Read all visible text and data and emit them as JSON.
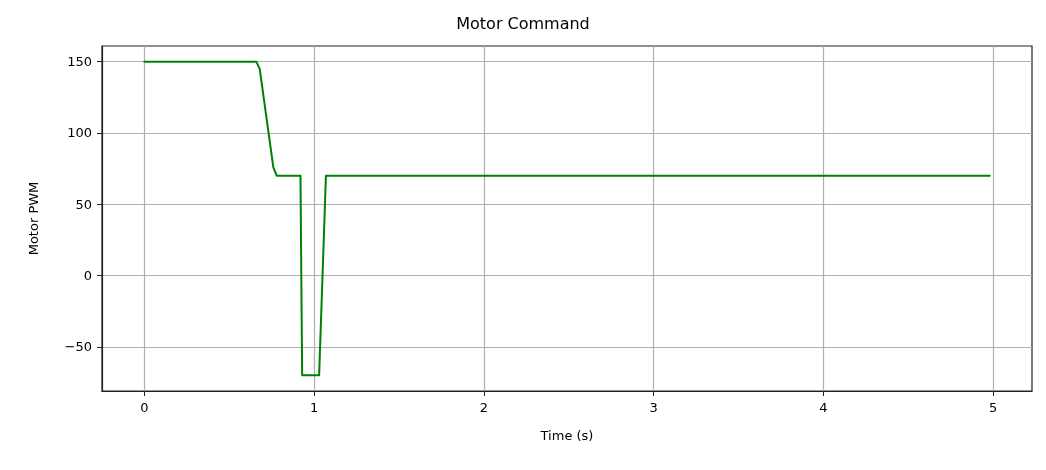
{
  "chart_data": {
    "type": "line",
    "title": "Motor Command",
    "xlabel": "Time (s)",
    "ylabel": "Motor PWM",
    "x": [
      0,
      0.66,
      0.68,
      0.76,
      0.78,
      0.92,
      0.93,
      1.03,
      1.07,
      4.98
    ],
    "series": [
      {
        "color": "#008000",
        "values": [
          150,
          150,
          145,
          76,
          70,
          70,
          -70,
          -70,
          70,
          70
        ]
      }
    ],
    "xlim": [
      -0.249,
      5.229
    ],
    "xticks": [
      0,
      1,
      2,
      3,
      4,
      5
    ],
    "ylim": [
      -81,
      161
    ],
    "yticks": [
      {
        "value": -50,
        "label": "−50"
      },
      0,
      50,
      100,
      150
    ],
    "grid": true,
    "marker": "none",
    "line_style": "solid"
  }
}
